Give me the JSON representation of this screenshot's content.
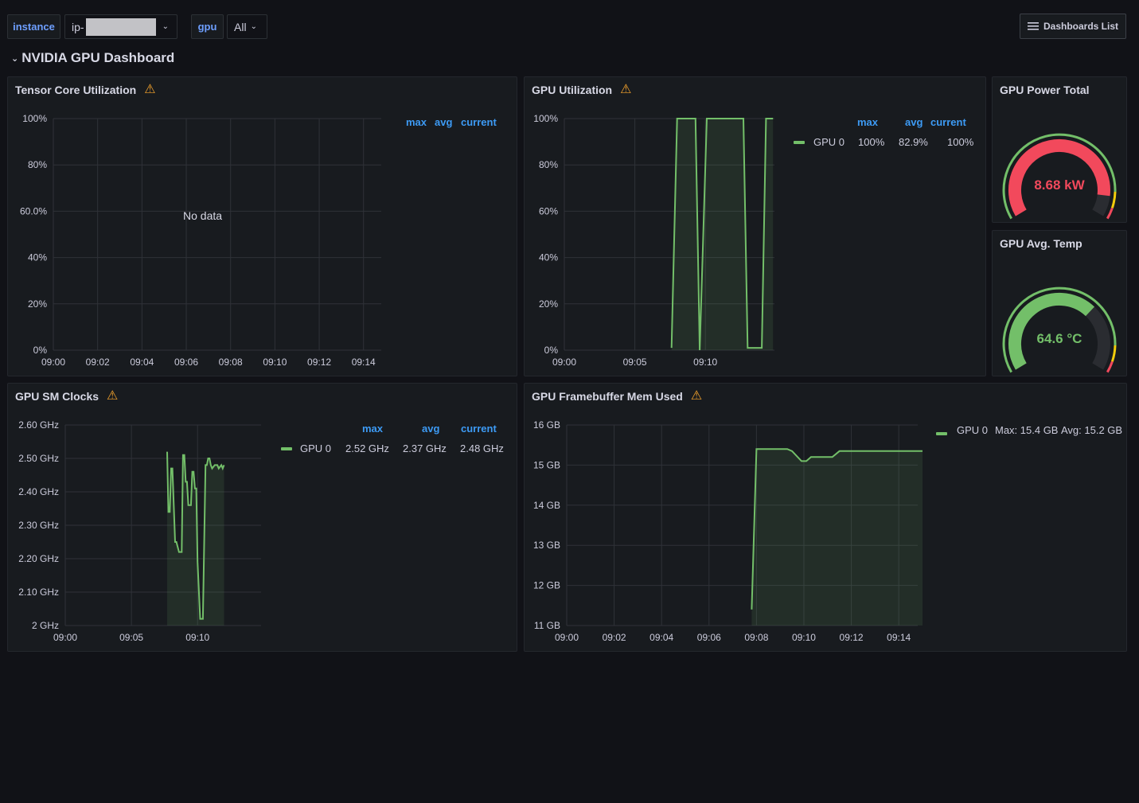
{
  "toolbar": {
    "instance_label": "instance",
    "instance_value": "ip-",
    "gpu_label": "gpu",
    "gpu_value": "All",
    "dashboards_list": "Dashboards List"
  },
  "row": {
    "title": "NVIDIA GPU Dashboard"
  },
  "legend_headers": {
    "max": "max",
    "avg": "avg",
    "current": "current"
  },
  "panels": {
    "tensor": {
      "title": "Tensor Core Utilization",
      "no_data": "No data",
      "y_ticks": [
        "100%",
        "80%",
        "60.0%",
        "40%",
        "20%",
        "0%"
      ],
      "x_ticks": [
        "09:00",
        "09:02",
        "09:04",
        "09:06",
        "09:08",
        "09:10",
        "09:12",
        "09:14"
      ]
    },
    "gpu_util": {
      "title": "GPU Utilization",
      "y_ticks": [
        "100%",
        "80%",
        "60%",
        "40%",
        "20%",
        "0%"
      ],
      "x_ticks": [
        "09:00",
        "09:05",
        "09:10"
      ],
      "legend": {
        "name": "GPU 0",
        "max": "100%",
        "avg": "82.9%",
        "current": "100%"
      }
    },
    "power": {
      "title": "GPU Power Total",
      "value": "8.68 kW"
    },
    "temp": {
      "title": "GPU Avg. Temp",
      "value": "64.6 °C"
    },
    "sm_clocks": {
      "title": "GPU SM Clocks",
      "y_ticks": [
        "2.60 GHz",
        "2.50 GHz",
        "2.40 GHz",
        "2.30 GHz",
        "2.20 GHz",
        "2.10 GHz",
        "2 GHz"
      ],
      "x_ticks": [
        "09:00",
        "09:05",
        "09:10"
      ],
      "legend": {
        "name": "GPU 0",
        "max": "2.52 GHz",
        "avg": "2.37 GHz",
        "current": "2.48 GHz"
      }
    },
    "fb_mem": {
      "title": "GPU Framebuffer Mem Used",
      "y_ticks": [
        "16 GB",
        "15 GB",
        "14 GB",
        "13 GB",
        "12 GB",
        "11 GB"
      ],
      "x_ticks": [
        "09:00",
        "09:02",
        "09:04",
        "09:06",
        "09:08",
        "09:10",
        "09:12",
        "09:14"
      ],
      "legend": {
        "name": "GPU 0",
        "max": "Max: 15.4 GB",
        "avg": "Avg: 15.2 GB"
      }
    }
  },
  "colors": {
    "series": "#73bf69",
    "accent": "#3d9bf5",
    "warning": "#f3a22c",
    "power": "#f2495c"
  },
  "chart_data": [
    {
      "type": "line",
      "title": "Tensor Core Utilization",
      "series": [],
      "ylim": [
        0,
        100
      ]
    },
    {
      "type": "area",
      "title": "GPU Utilization",
      "ylim": [
        0,
        100
      ],
      "series": [
        {
          "name": "GPU 0",
          "x_min": [
            0,
            7.6,
            8.0,
            9.3,
            9.6,
            10.1,
            12.7,
            13.0,
            14.0,
            14.3,
            14.6,
            14.8
          ],
          "values": [
            null,
            1,
            100,
            100,
            0,
            100,
            100,
            1,
            1,
            100,
            100,
            100
          ]
        }
      ]
    },
    {
      "type": "gauge",
      "title": "GPU Power Total",
      "value": 8.68,
      "unit": "kW",
      "fill": 0.9,
      "value_color": "#f2495c"
    },
    {
      "type": "gauge",
      "title": "GPU Avg. Temp",
      "value": 64.6,
      "unit": "°C",
      "fill": 0.68,
      "value_color": "#73bf69"
    },
    {
      "type": "area",
      "title": "GPU SM Clocks",
      "ylim": [
        2.0,
        2.6
      ],
      "series": [
        {
          "name": "GPU 0",
          "x_min": [
            7.7,
            7.8,
            7.9,
            8.0,
            8.1,
            8.3,
            8.4,
            8.6,
            8.8,
            8.9,
            9.0,
            9.1,
            9.2,
            9.3,
            9.5,
            9.6,
            9.7,
            9.8,
            9.9,
            10.0,
            10.2,
            10.3,
            10.4,
            10.6,
            10.7,
            10.8,
            10.9,
            11.0,
            11.1,
            11.3,
            11.5,
            11.6,
            11.8,
            11.9,
            12.0
          ],
          "values": [
            2.52,
            2.34,
            2.34,
            2.47,
            2.47,
            2.25,
            2.25,
            2.22,
            2.22,
            2.51,
            2.51,
            2.43,
            2.43,
            2.36,
            2.36,
            2.46,
            2.46,
            2.41,
            2.41,
            2.19,
            2.02,
            2.02,
            2.02,
            2.48,
            2.48,
            2.5,
            2.5,
            2.48,
            2.47,
            2.48,
            2.48,
            2.47,
            2.48,
            2.47,
            2.48
          ]
        }
      ]
    },
    {
      "type": "area",
      "title": "GPU Framebuffer Mem Used",
      "ylim": [
        11,
        16
      ],
      "series": [
        {
          "name": "GPU 0",
          "x_min": [
            7.8,
            8.0,
            9.0,
            9.3,
            9.5,
            9.9,
            10.1,
            10.3,
            11.2,
            11.5,
            15.0
          ],
          "values": [
            11.4,
            15.4,
            15.4,
            15.4,
            15.35,
            15.1,
            15.1,
            15.2,
            15.2,
            15.35,
            15.35
          ]
        }
      ]
    }
  ]
}
